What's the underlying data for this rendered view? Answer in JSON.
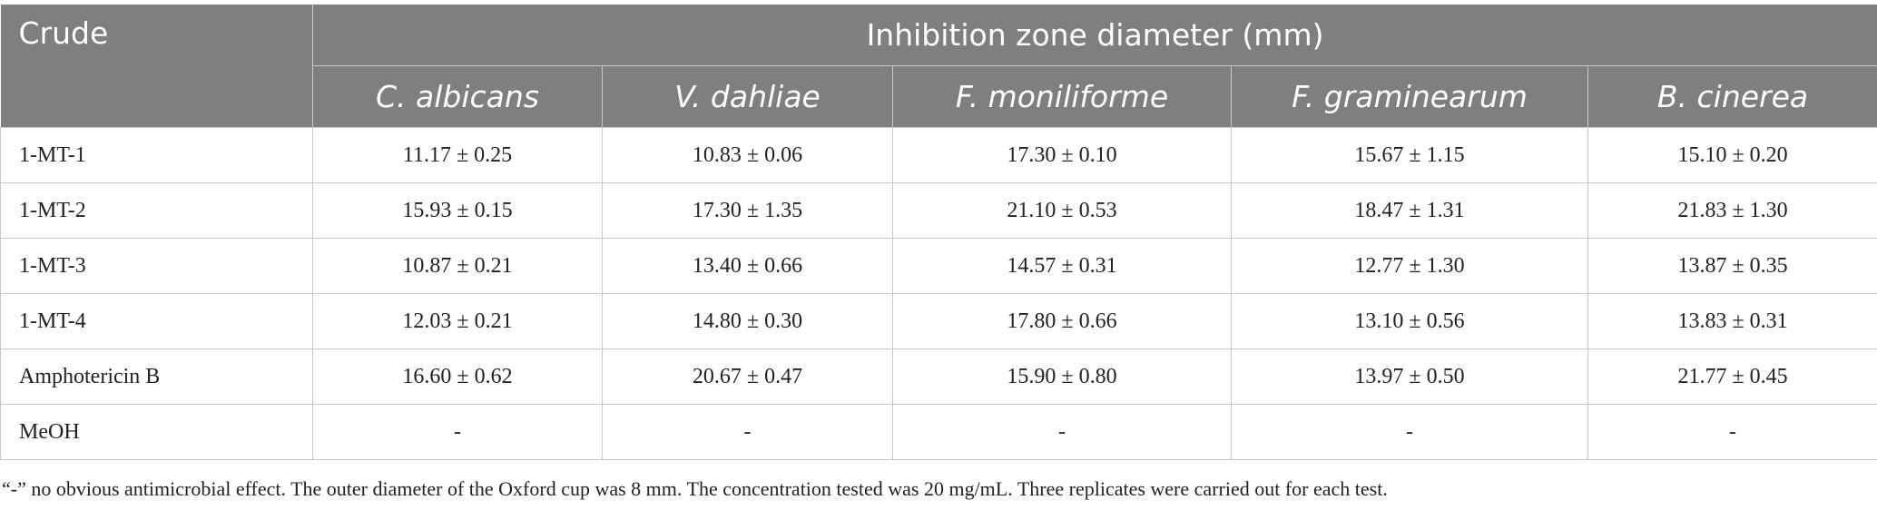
{
  "table": {
    "header": {
      "first": "Crude",
      "group": "Inhibition zone diameter (mm)",
      "columns": [
        "C. albicans",
        "V. dahliae",
        "F. moniliforme",
        "F. graminearum",
        "B. cinerea"
      ]
    },
    "rows": [
      [
        "1-MT-1",
        "11.17 ± 0.25",
        "10.83 ± 0.06",
        "17.30 ± 0.10",
        "15.67 ± 1.15",
        "15.10 ± 0.20"
      ],
      [
        "1-MT-2",
        "15.93 ± 0.15",
        "17.30 ± 1.35",
        "21.10 ± 0.53",
        "18.47 ± 1.31",
        "21.83 ± 1.30"
      ],
      [
        "1-MT-3",
        "10.87 ± 0.21",
        "13.40 ± 0.66",
        "14.57 ± 0.31",
        "12.77 ± 1.30",
        "13.87 ± 0.35"
      ],
      [
        "1-MT-4",
        "12.03 ± 0.21",
        "14.80 ± 0.30",
        "17.80 ± 0.66",
        "13.10 ± 0.56",
        "13.83 ± 0.31"
      ],
      [
        "Amphotericin B",
        "16.60 ± 0.62",
        "20.67 ± 0.47",
        "15.90 ± 0.80",
        "13.97 ± 0.50",
        "21.77 ± 0.45"
      ],
      [
        "MeOH",
        "-",
        "-",
        "-",
        "-",
        "-"
      ]
    ],
    "footnote": "“-” no obvious antimicrobial effect. The outer diameter of the Oxford cup was 8 mm. The concentration tested was 20 mg/mL. Three replicates were carried out for each test."
  }
}
